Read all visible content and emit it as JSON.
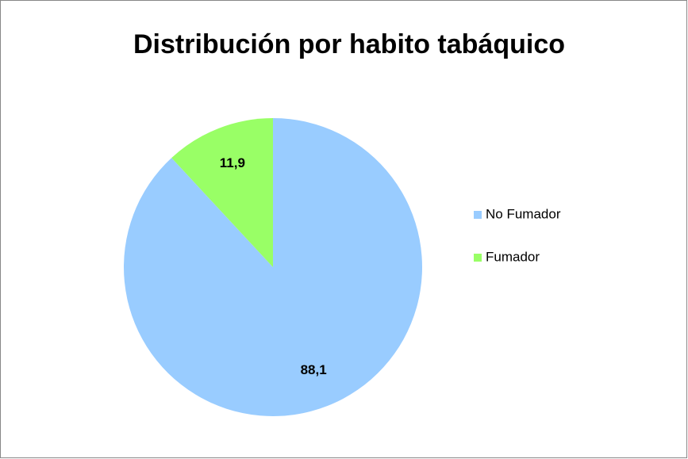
{
  "chart_data": {
    "type": "pie",
    "title": "Distribución por habito tabáquico",
    "categories": [
      "No Fumador",
      "Fumador"
    ],
    "values": [
      88.1,
      11.9
    ],
    "value_labels": [
      "88,1",
      "11,9"
    ],
    "colors": [
      "#99ccff",
      "#99ff66"
    ],
    "legend": "right"
  }
}
